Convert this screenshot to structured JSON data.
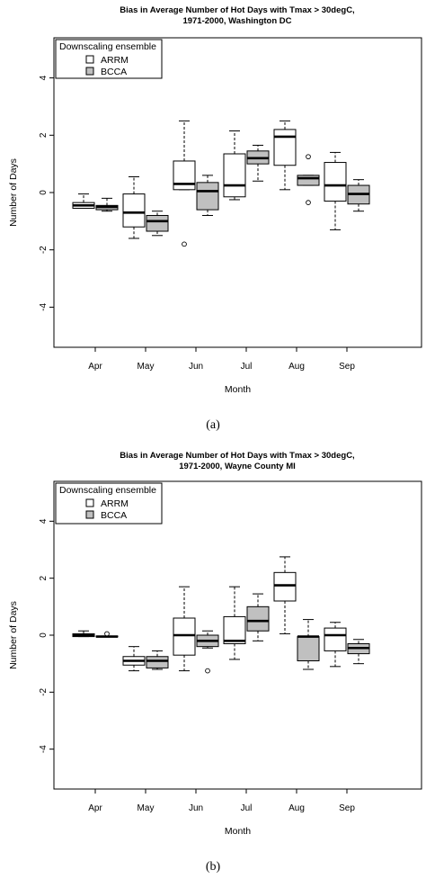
{
  "chart_data": [
    {
      "type": "box",
      "title_line1": "Bias in Average Number of Hot Days with Tmax > 30degC,",
      "title_line2": "1971-2000, Washington DC",
      "xlabel": "Month",
      "ylabel": "Number of Days",
      "ylim": [
        -5.4,
        5.4
      ],
      "yticks": [
        "-4",
        "-2",
        "0",
        "2",
        "4"
      ],
      "categories": [
        "Apr",
        "May",
        "Jun",
        "Jul",
        "Aug",
        "Sep"
      ],
      "legend_title": "Downscaling ensemble",
      "legend_placement": "top-left",
      "caption": "(a)",
      "series": [
        {
          "name": "ARRM",
          "fill": "#ffffff",
          "boxes": [
            {
              "min": -0.55,
              "q1": -0.55,
              "median": -0.45,
              "q3": -0.35,
              "max": -0.05,
              "outliers": []
            },
            {
              "min": -1.6,
              "q1": -1.2,
              "median": -0.7,
              "q3": -0.05,
              "max": 0.55,
              "outliers": []
            },
            {
              "min": 0.1,
              "q1": 0.1,
              "median": 0.3,
              "q3": 1.1,
              "max": 2.5,
              "outliers": [
                -1.8
              ]
            },
            {
              "min": -0.25,
              "q1": -0.15,
              "median": 0.25,
              "q3": 1.35,
              "max": 2.15,
              "outliers": []
            },
            {
              "min": 0.1,
              "q1": 0.95,
              "median": 1.95,
              "q3": 2.2,
              "max": 2.5,
              "outliers": []
            },
            {
              "min": -1.3,
              "q1": -0.3,
              "median": 0.25,
              "q3": 1.05,
              "max": 1.4,
              "outliers": []
            }
          ]
        },
        {
          "name": "BCCA",
          "fill": "#c0c0c0",
          "boxes": [
            {
              "min": -0.65,
              "q1": -0.6,
              "median": -0.5,
              "q3": -0.45,
              "max": -0.2,
              "outliers": []
            },
            {
              "min": -1.5,
              "q1": -1.35,
              "median": -1.0,
              "q3": -0.8,
              "max": -0.65,
              "outliers": []
            },
            {
              "min": -0.8,
              "q1": -0.6,
              "median": 0.05,
              "q3": 0.35,
              "max": 0.6,
              "outliers": []
            },
            {
              "min": 0.4,
              "q1": 1.0,
              "median": 1.2,
              "q3": 1.45,
              "max": 1.65,
              "outliers": []
            },
            {
              "min": 0.25,
              "q1": 0.25,
              "median": 0.5,
              "q3": 0.6,
              "max": 0.6,
              "outliers": [
                1.25,
                -0.35
              ]
            },
            {
              "min": -0.65,
              "q1": -0.4,
              "median": -0.05,
              "q3": 0.25,
              "max": 0.45,
              "outliers": []
            }
          ]
        }
      ]
    },
    {
      "type": "box",
      "title_line1": "Bias in Average Number of Hot Days with Tmax > 30degC,",
      "title_line2": "1971-2000, Wayne County MI",
      "xlabel": "Month",
      "ylabel": "Number of Days",
      "ylim": [
        -5.4,
        5.4
      ],
      "yticks": [
        "-4",
        "-2",
        "0",
        "2",
        "4"
      ],
      "categories": [
        "Apr",
        "May",
        "Jun",
        "Jul",
        "Aug",
        "Sep"
      ],
      "legend_title": "Downscaling ensemble",
      "legend_placement": "top-left",
      "caption": "(b)",
      "series": [
        {
          "name": "ARRM",
          "fill": "#ffffff",
          "boxes": [
            {
              "min": -0.05,
              "q1": -0.05,
              "median": 0.0,
              "q3": 0.05,
              "max": 0.15,
              "outliers": []
            },
            {
              "min": -1.25,
              "q1": -1.05,
              "median": -0.9,
              "q3": -0.75,
              "max": -0.4,
              "outliers": []
            },
            {
              "min": -1.25,
              "q1": -0.7,
              "median": 0.0,
              "q3": 0.6,
              "max": 1.7,
              "outliers": []
            },
            {
              "min": -0.85,
              "q1": -0.3,
              "median": -0.2,
              "q3": 0.65,
              "max": 1.7,
              "outliers": []
            },
            {
              "min": 0.05,
              "q1": 1.2,
              "median": 1.75,
              "q3": 2.2,
              "max": 2.75,
              "outliers": []
            },
            {
              "min": -1.1,
              "q1": -0.55,
              "median": 0.0,
              "q3": 0.25,
              "max": 0.45,
              "outliers": []
            }
          ]
        },
        {
          "name": "BCCA",
          "fill": "#c0c0c0",
          "boxes": [
            {
              "min": -0.05,
              "q1": -0.05,
              "median": -0.05,
              "q3": -0.03,
              "max": -0.03,
              "outliers": [
                0.05
              ]
            },
            {
              "min": -1.2,
              "q1": -1.15,
              "median": -0.9,
              "q3": -0.75,
              "max": -0.55,
              "outliers": []
            },
            {
              "min": -0.45,
              "q1": -0.4,
              "median": -0.2,
              "q3": 0.0,
              "max": 0.15,
              "outliers": [
                -1.25
              ]
            },
            {
              "min": -0.2,
              "q1": 0.15,
              "median": 0.5,
              "q3": 1.0,
              "max": 1.45,
              "outliers": []
            },
            {
              "min": -1.2,
              "q1": -0.9,
              "median": -0.05,
              "q3": -0.05,
              "max": 0.55,
              "outliers": []
            },
            {
              "min": -1.0,
              "q1": -0.65,
              "median": -0.45,
              "q3": -0.3,
              "max": -0.15,
              "outliers": []
            }
          ]
        }
      ]
    }
  ]
}
